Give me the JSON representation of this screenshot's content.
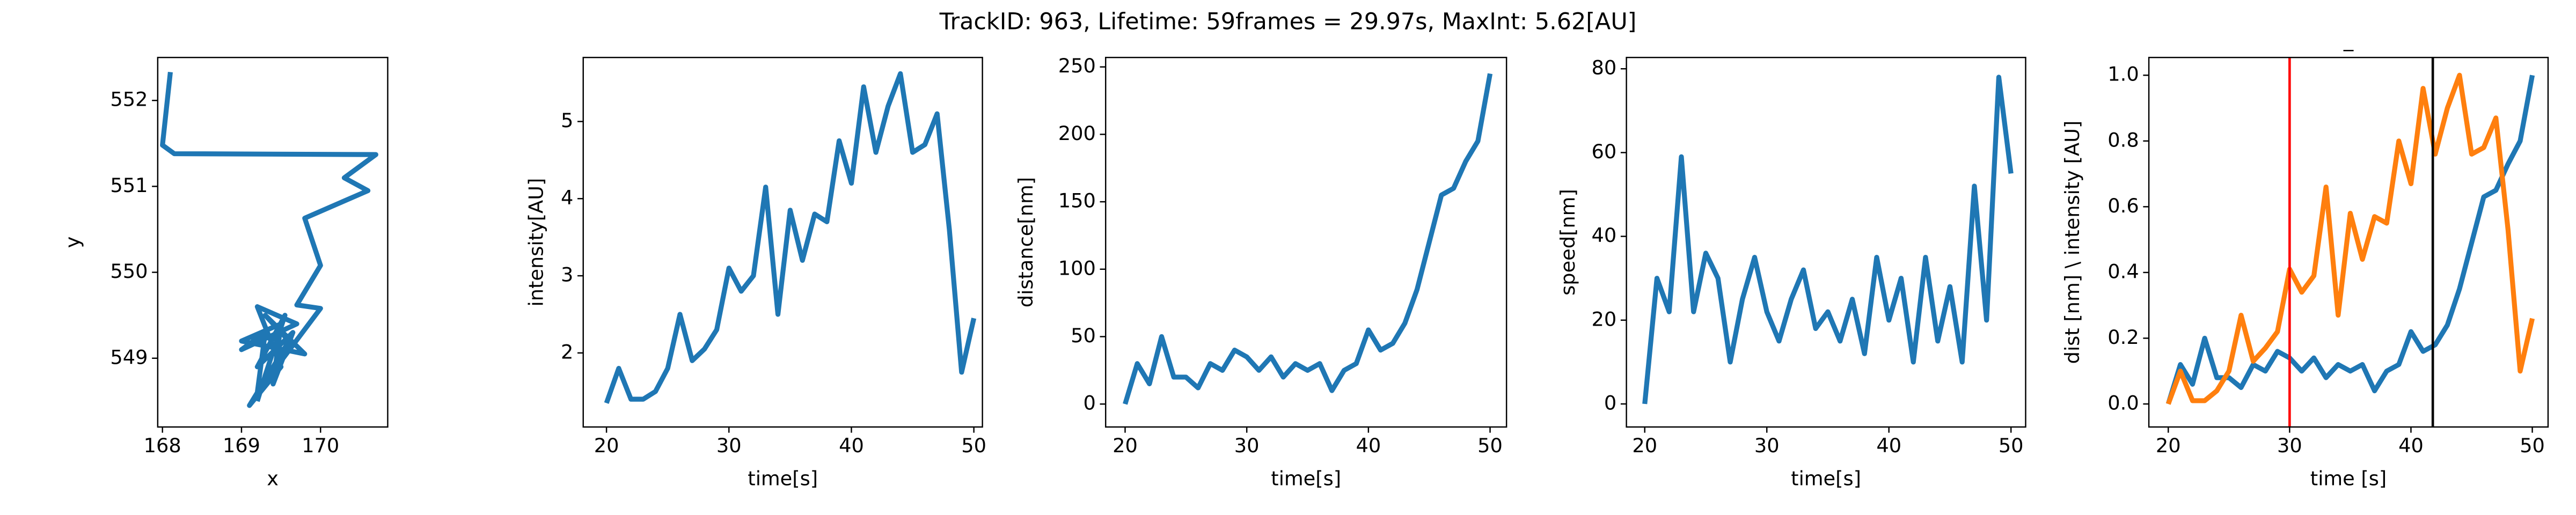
{
  "title": "TrackID: 963, Lifetime: 59frames = 29.97s, MaxInt: 5.62[AU]",
  "chart_data": [
    {
      "type": "line",
      "xlabel": "x",
      "ylabel": "y",
      "x": [
        168.1,
        168.0,
        168.15,
        170.7,
        170.3,
        170.6,
        169.8,
        170.0,
        169.7,
        170.0,
        169.2,
        169.3,
        169.0,
        169.7,
        169.2,
        169.5,
        169.1,
        169.6,
        169.3,
        169.8,
        169.0,
        169.5,
        169.4,
        169.65,
        169.2,
        169.55,
        169.3,
        169.2
      ],
      "series": [
        {
          "color": "#1f77b4",
          "values": [
            552.33,
            551.48,
            551.38,
            551.37,
            551.1,
            550.95,
            550.63,
            550.08,
            549.62,
            549.58,
            548.6,
            549.3,
            549.1,
            549.4,
            549.6,
            548.9,
            548.45,
            549.2,
            549.5,
            549.05,
            549.2,
            549.4,
            548.7,
            549.3,
            548.9,
            549.5,
            548.8,
            548.5
          ]
        }
      ],
      "xlim": [
        167.94,
        170.85
      ],
      "ylim": [
        548.2,
        552.5
      ],
      "xticks": [
        168,
        169,
        170
      ],
      "yticks": [
        549,
        550,
        551,
        552
      ]
    },
    {
      "type": "line",
      "xlabel": "time[s]",
      "ylabel": "intensity[AU]",
      "x": [
        20,
        21,
        22,
        23,
        24,
        25,
        26,
        27,
        28,
        29,
        30,
        31,
        32,
        33,
        34,
        35,
        36,
        37,
        38,
        39,
        40,
        41,
        42,
        43,
        44,
        45,
        46,
        47,
        48,
        49,
        50
      ],
      "series": [
        {
          "color": "#1f77b4",
          "values": [
            1.35,
            1.8,
            1.4,
            1.4,
            1.5,
            1.8,
            2.5,
            1.9,
            2.05,
            2.3,
            3.1,
            2.8,
            3.0,
            4.15,
            2.5,
            3.85,
            3.2,
            3.8,
            3.7,
            4.75,
            4.2,
            5.45,
            4.6,
            5.2,
            5.62,
            4.6,
            4.7,
            5.1,
            3.6,
            1.75,
            2.45
          ]
        }
      ],
      "xlim": [
        18.1,
        50.7
      ],
      "ylim": [
        1.04,
        5.83
      ],
      "xticks": [
        20,
        30,
        40,
        50
      ],
      "yticks": [
        2,
        3,
        4,
        5
      ]
    },
    {
      "type": "line",
      "xlabel": "time[s]",
      "ylabel": "distance[nm]",
      "x": [
        20,
        21,
        22,
        23,
        24,
        25,
        26,
        27,
        28,
        29,
        30,
        31,
        32,
        33,
        34,
        35,
        36,
        37,
        38,
        39,
        40,
        41,
        42,
        43,
        44,
        45,
        46,
        47,
        48,
        49,
        50
      ],
      "series": [
        {
          "color": "#1f77b4",
          "values": [
            0,
            30,
            15,
            50,
            20,
            20,
            12,
            30,
            25,
            40,
            35,
            25,
            35,
            20,
            30,
            25,
            30,
            10,
            25,
            30,
            55,
            40,
            45,
            60,
            85,
            120,
            155,
            160,
            180,
            195,
            245
          ]
        }
      ],
      "xlim": [
        18.4,
        51.35
      ],
      "ylim": [
        -17,
        257
      ],
      "xticks": [
        20,
        30,
        40,
        50
      ],
      "yticks": [
        0,
        50,
        100,
        150,
        200,
        250
      ]
    },
    {
      "type": "line",
      "xlabel": "time[s]",
      "ylabel": "speed[nm]",
      "x": [
        20,
        21,
        22,
        23,
        24,
        25,
        26,
        27,
        28,
        29,
        30,
        31,
        32,
        33,
        34,
        35,
        36,
        37,
        38,
        39,
        40,
        41,
        42,
        43,
        44,
        45,
        46,
        47,
        48,
        49,
        50
      ],
      "series": [
        {
          "color": "#1f77b4",
          "values": [
            0,
            30,
            22,
            59,
            22,
            36,
            30,
            10,
            25,
            35,
            22,
            15,
            25,
            32,
            18,
            22,
            15,
            25,
            12,
            35,
            20,
            30,
            10,
            35,
            15,
            28,
            10,
            52,
            20,
            78,
            55
          ]
        }
      ],
      "xlim": [
        18.5,
        51.2
      ],
      "ylim": [
        -5.5,
        82.7
      ],
      "xticks": [
        20,
        30,
        40,
        50
      ],
      "yticks": [
        0,
        20,
        40,
        60,
        80
      ]
    },
    {
      "type": "line",
      "title": "_",
      "xlabel": "time [s]",
      "ylabel": "dist [nm] \\ intensity [AU]",
      "x": [
        20,
        21,
        22,
        23,
        24,
        25,
        26,
        27,
        28,
        29,
        30,
        31,
        32,
        33,
        34,
        35,
        36,
        37,
        38,
        39,
        40,
        41,
        42,
        43,
        44,
        45,
        46,
        47,
        48,
        49,
        50
      ],
      "series": [
        {
          "color": "#1f77b4",
          "values": [
            0,
            0.12,
            0.06,
            0.2,
            0.08,
            0.08,
            0.05,
            0.12,
            0.1,
            0.16,
            0.14,
            0.1,
            0.14,
            0.08,
            0.12,
            0.1,
            0.12,
            0.04,
            0.1,
            0.12,
            0.22,
            0.16,
            0.18,
            0.24,
            0.35,
            0.49,
            0.63,
            0.65,
            0.73,
            0.8,
            1.0
          ]
        },
        {
          "color": "#ff7f0e",
          "values": [
            0,
            0.1,
            0.01,
            0.01,
            0.04,
            0.1,
            0.27,
            0.13,
            0.17,
            0.22,
            0.41,
            0.34,
            0.39,
            0.66,
            0.27,
            0.58,
            0.44,
            0.57,
            0.55,
            0.8,
            0.67,
            0.96,
            0.76,
            0.9,
            1.0,
            0.76,
            0.78,
            0.87,
            0.53,
            0.1,
            0.26
          ]
        }
      ],
      "vlines": [
        {
          "x": 30,
          "color": "#ff0000"
        },
        {
          "x": 41.8,
          "color": "#000000"
        }
      ],
      "xlim": [
        18.4,
        51.3
      ],
      "ylim": [
        -0.07,
        1.054
      ],
      "xticks": [
        20,
        30,
        40,
        50
      ],
      "yticks": [
        {
          "value": 0,
          "label": "0.0"
        },
        0.2,
        0.4,
        0.6,
        0.8,
        {
          "value": 1,
          "label": "1.0"
        }
      ]
    }
  ]
}
